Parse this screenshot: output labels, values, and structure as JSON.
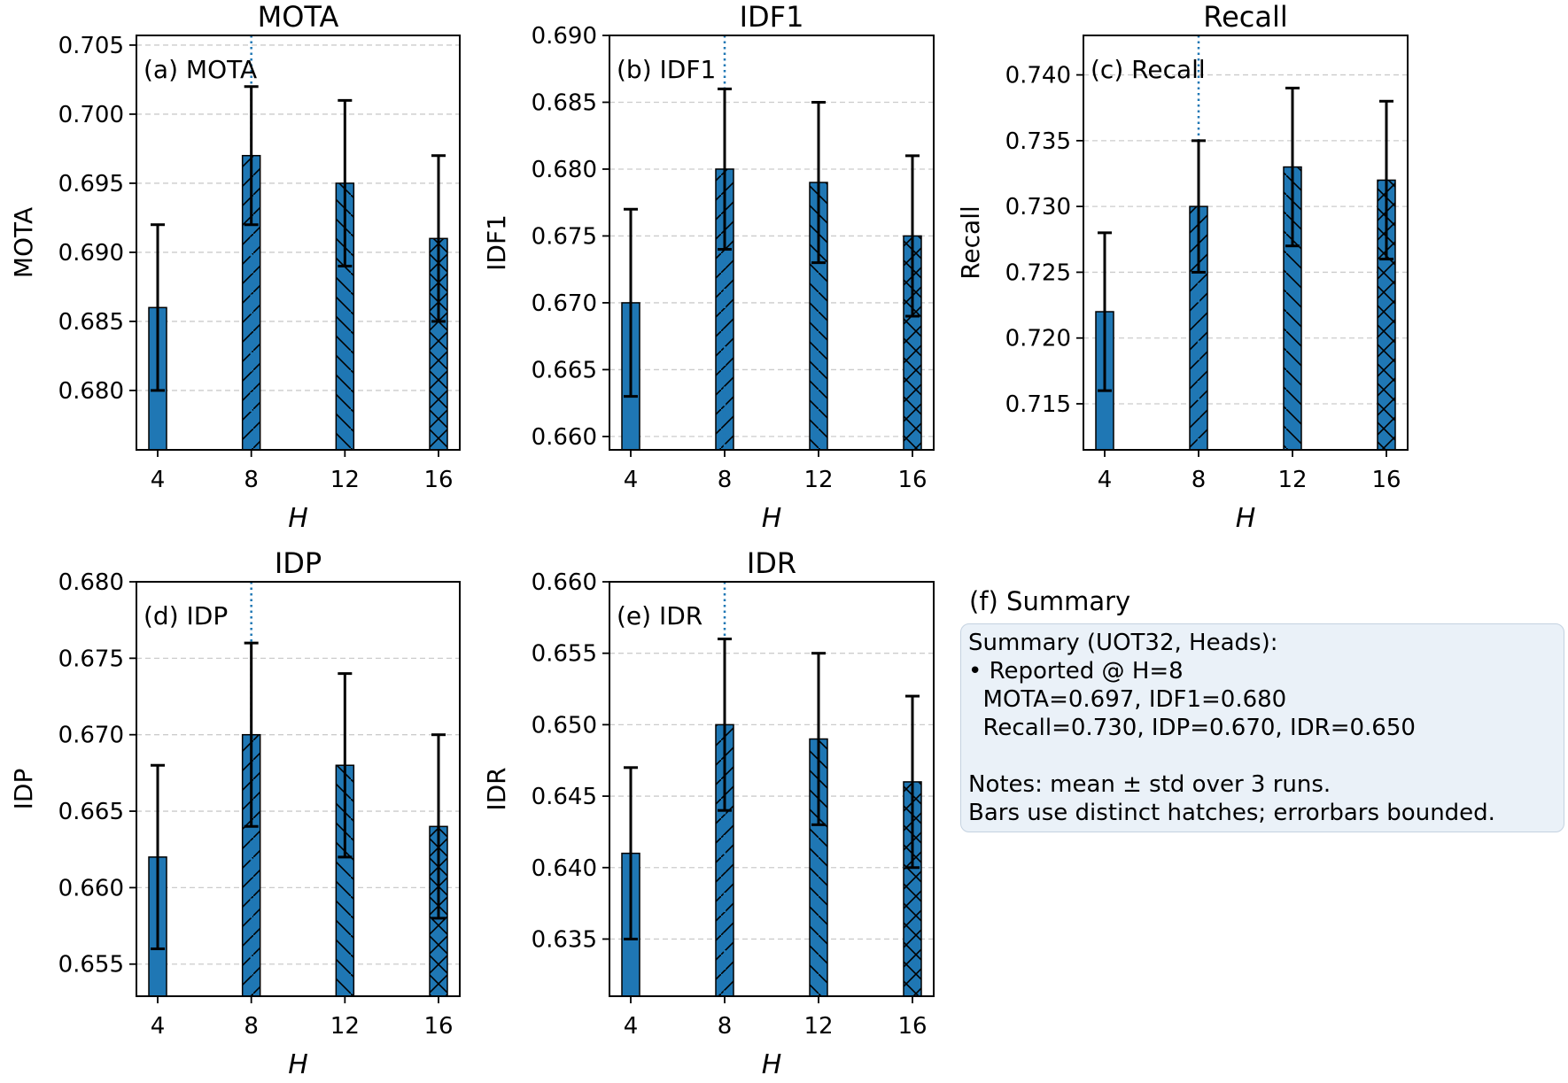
{
  "chart_data": [
    {
      "type": "bar",
      "panel": "(a) MOTA",
      "title": "MOTA",
      "annotation": "(a) MOTA",
      "xlabel": "H",
      "ylabel": "MOTA",
      "categories": [
        "4",
        "8",
        "12",
        "16"
      ],
      "values": [
        0.686,
        0.697,
        0.695,
        0.691
      ],
      "errors": [
        0.006,
        0.005,
        0.006,
        0.006
      ],
      "ylim": [
        0.6757,
        0.7057
      ],
      "yticks": [
        0.68,
        0.685,
        0.69,
        0.695,
        0.7,
        0.705
      ],
      "ytick_labels": [
        "0.680",
        "0.685",
        "0.690",
        "0.695",
        "0.700",
        "0.705"
      ],
      "highlight_category": "8",
      "grid": "y-dashed"
    },
    {
      "type": "bar",
      "panel": "(b) IDF1",
      "title": "IDF1",
      "annotation": "(b) IDF1",
      "xlabel": "H",
      "ylabel": "IDF1",
      "categories": [
        "4",
        "8",
        "12",
        "16"
      ],
      "values": [
        0.67,
        0.68,
        0.679,
        0.675
      ],
      "errors": [
        0.007,
        0.006,
        0.006,
        0.006
      ],
      "ylim": [
        0.659,
        0.69
      ],
      "yticks": [
        0.66,
        0.665,
        0.67,
        0.675,
        0.68,
        0.685,
        0.69
      ],
      "ytick_labels": [
        "0.660",
        "0.665",
        "0.670",
        "0.675",
        "0.680",
        "0.685",
        "0.690"
      ],
      "highlight_category": "8",
      "grid": "y-dashed"
    },
    {
      "type": "bar",
      "panel": "(c) Recall",
      "title": "Recall",
      "annotation": "(c) Recall",
      "xlabel": "H",
      "ylabel": "Recall",
      "categories": [
        "4",
        "8",
        "12",
        "16"
      ],
      "values": [
        0.722,
        0.73,
        0.733,
        0.732
      ],
      "errors": [
        0.006,
        0.005,
        0.006,
        0.006
      ],
      "ylim": [
        0.7115,
        0.743
      ],
      "yticks": [
        0.715,
        0.72,
        0.725,
        0.73,
        0.735,
        0.74
      ],
      "ytick_labels": [
        "0.715",
        "0.720",
        "0.725",
        "0.730",
        "0.735",
        "0.740"
      ],
      "highlight_category": "8",
      "grid": "y-dashed"
    },
    {
      "type": "bar",
      "panel": "(d) IDP",
      "title": "IDP",
      "annotation": "(d) IDP",
      "xlabel": "H",
      "ylabel": "IDP",
      "categories": [
        "4",
        "8",
        "12",
        "16"
      ],
      "values": [
        0.662,
        0.67,
        0.668,
        0.664
      ],
      "errors": [
        0.006,
        0.006,
        0.006,
        0.006
      ],
      "ylim": [
        0.6529,
        0.68
      ],
      "yticks": [
        0.655,
        0.66,
        0.665,
        0.67,
        0.675,
        0.68
      ],
      "ytick_labels": [
        "0.655",
        "0.660",
        "0.665",
        "0.670",
        "0.675",
        "0.680"
      ],
      "highlight_category": "8",
      "grid": "y-dashed"
    },
    {
      "type": "bar",
      "panel": "(e) IDR",
      "title": "IDR",
      "annotation": "(e) IDR",
      "xlabel": "H",
      "ylabel": "IDR",
      "categories": [
        "4",
        "8",
        "12",
        "16"
      ],
      "values": [
        0.641,
        0.65,
        0.649,
        0.646
      ],
      "errors": [
        0.006,
        0.006,
        0.006,
        0.006
      ],
      "ylim": [
        0.631,
        0.66
      ],
      "yticks": [
        0.635,
        0.64,
        0.645,
        0.65,
        0.655,
        0.66
      ],
      "ytick_labels": [
        "0.635",
        "0.640",
        "0.645",
        "0.650",
        "0.655",
        "0.660"
      ],
      "highlight_category": "8",
      "grid": "y-dashed"
    }
  ],
  "colors": {
    "bar_fill": "#1f77b4",
    "bar_edge": "#000000",
    "errorbar": "#000000",
    "highlight_line": "#1f77b4",
    "grid": "#cccccc",
    "summary_bg": "#eaf1f8",
    "summary_border": "#c4d2e0"
  },
  "summary": {
    "heading": "(f) Summary",
    "lines": [
      "Summary (UOT32, Heads):",
      "• Reported @ H=8",
      "  MOTA=0.697, IDF1=0.680",
      "  Recall=0.730, IDP=0.670, IDR=0.650",
      "",
      "Notes: mean ± std over 3 runs.",
      "Bars use distinct hatches; errorbars bounded."
    ]
  }
}
